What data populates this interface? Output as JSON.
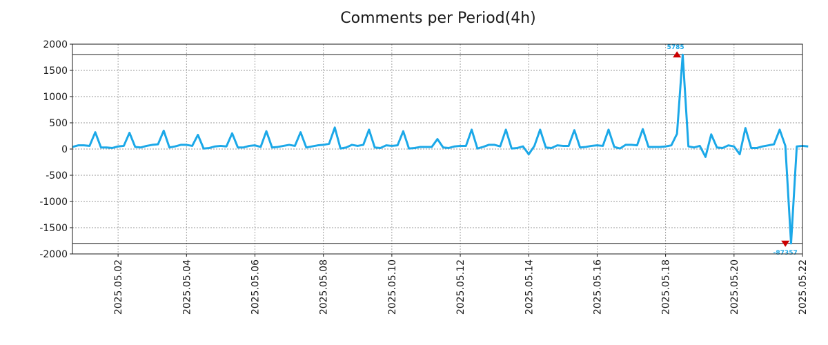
{
  "chart_data": {
    "type": "line",
    "title": "Comments per Period(4h)",
    "xlabel": "",
    "ylabel": "",
    "ylim": [
      -2000,
      2000
    ],
    "xlim": [
      "2025-04-30 16:00",
      "2025-05-22 00:00"
    ],
    "y_ticks": [
      2000,
      1500,
      1000,
      500,
      0,
      -500,
      -1000,
      -1500,
      -2000
    ],
    "x_tick_labels": [
      "2025.05.02",
      "2025.05.04",
      "2025.05.06",
      "2025.05.08",
      "2025.05.10",
      "2025.05.12",
      "2025.05.14",
      "2025.05.16",
      "2025.05.18",
      "2025.05.20",
      "2025.05.22"
    ],
    "grid": true,
    "clip_lines": [
      1800,
      -1800
    ],
    "colors": {
      "series": "#1ba8e8",
      "marker": "#cc0000",
      "axis": "#1a1a1a",
      "grid": "#999999"
    },
    "annotations": [
      {
        "text": "5785",
        "x": "2025-05-18 08:00",
        "y": 1800,
        "position": "above"
      },
      {
        "text": "-87357",
        "x": "2025-05-21 12:00",
        "y": -1800,
        "position": "below"
      }
    ],
    "series": [
      {
        "x_start": "2025-04-30 16:00",
        "x_step_hours": 4,
        "values": [
          40,
          70,
          70,
          60,
          320,
          30,
          30,
          20,
          50,
          60,
          310,
          40,
          30,
          60,
          80,
          90,
          350,
          30,
          50,
          80,
          80,
          60,
          270,
          10,
          20,
          50,
          60,
          50,
          300,
          30,
          30,
          60,
          70,
          40,
          340,
          30,
          40,
          60,
          80,
          60,
          320,
          30,
          50,
          70,
          80,
          100,
          410,
          10,
          30,
          80,
          60,
          80,
          370,
          30,
          20,
          70,
          60,
          70,
          340,
          10,
          20,
          40,
          40,
          40,
          190,
          30,
          20,
          50,
          60,
          60,
          370,
          10,
          40,
          80,
          80,
          50,
          370,
          10,
          20,
          50,
          -100,
          60,
          370,
          30,
          20,
          70,
          60,
          60,
          360,
          30,
          40,
          60,
          70,
          60,
          370,
          40,
          10,
          80,
          80,
          70,
          380,
          40,
          40,
          40,
          50,
          70,
          290,
          1800,
          50,
          30,
          60,
          -150,
          280,
          30,
          20,
          70,
          50,
          -100,
          400,
          20,
          20,
          50,
          70,
          90,
          370,
          60,
          -1800,
          50,
          60,
          50
        ]
      }
    ]
  }
}
